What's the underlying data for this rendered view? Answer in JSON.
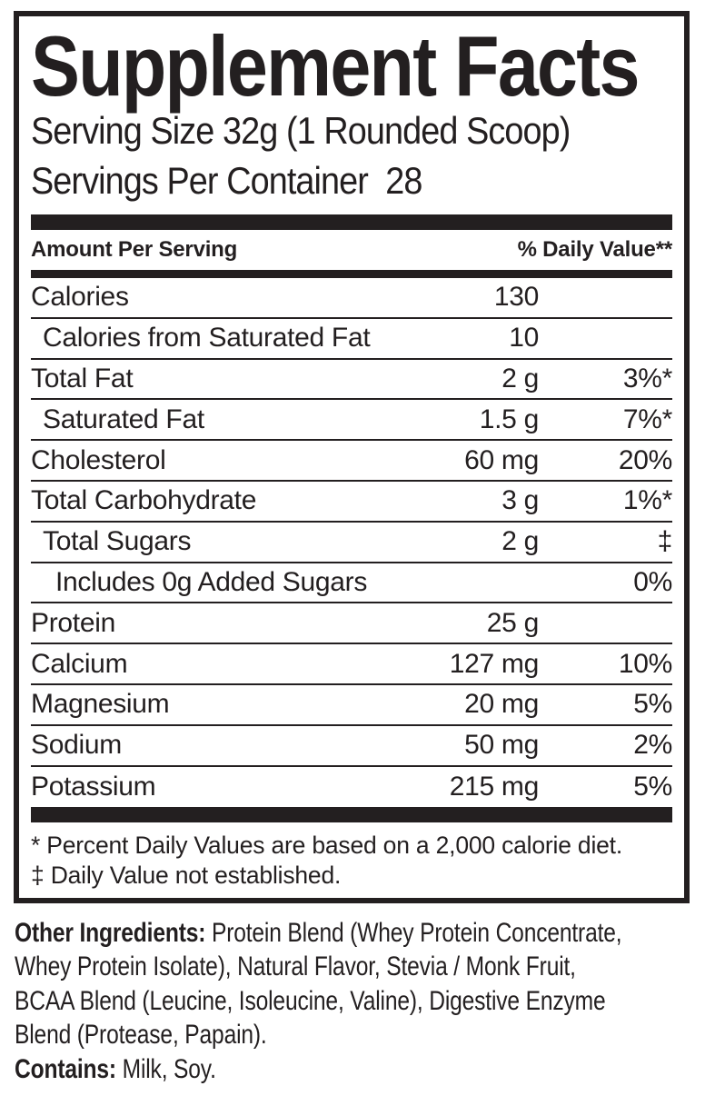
{
  "panel": {
    "title": "Supplement Facts",
    "serving_size": "Serving Size 32g (1 Rounded Scoop)",
    "servings_per_container": "Servings Per Container  28",
    "columns": {
      "amount": "Amount Per Serving",
      "daily_value": "% Daily Value**"
    },
    "rows": [
      {
        "name": "Calories",
        "amount": "130",
        "dv": ""
      },
      {
        "name": "Calories from Saturated Fat",
        "amount": "10",
        "dv": ""
      },
      {
        "name": "Total Fat",
        "amount": "2 g",
        "dv": "3%*"
      },
      {
        "name": "Saturated Fat",
        "amount": "1.5 g",
        "dv": "7%*"
      },
      {
        "name": "Cholesterol",
        "amount": "60 mg",
        "dv": "20%"
      },
      {
        "name": "Total Carbohydrate",
        "amount": "3 g",
        "dv": "1%*"
      },
      {
        "name": "Total Sugars",
        "amount": "2 g",
        "dv": "‡"
      },
      {
        "name": "Includes 0g Added Sugars",
        "amount": "",
        "dv": "0%"
      },
      {
        "name": "Protein",
        "amount": "25 g",
        "dv": ""
      },
      {
        "name": "Calcium",
        "amount": "127 mg",
        "dv": "10%"
      },
      {
        "name": "Magnesium",
        "amount": "20 mg",
        "dv": "5%"
      },
      {
        "name": "Sodium",
        "amount": "50 mg",
        "dv": "2%"
      },
      {
        "name": "Potassium",
        "amount": "215 mg",
        "dv": "5%"
      }
    ],
    "footnotes": [
      "* Percent Daily Values are based on a 2,000 calorie diet.",
      "‡ Daily Value not established."
    ]
  },
  "ingredients": {
    "other_label": "Other Ingredients:",
    "line1_rest": " Protein Blend (Whey Protein Concentrate,",
    "line2": "Whey Protein Isolate), Natural Flavor, Stevia / Monk Fruit,",
    "line3": "BCAA Blend (Leucine, Isoleucine, Valine), Digestive Enzyme",
    "line4": "Blend (Protease, Papain).",
    "contains_label": "Contains:",
    "contains_rest": " Milk, Soy.",
    "full_text": "Other Ingredients: Protein Blend (Whey Protein Concentrate, Whey Protein Isolate), Natural Flavor, Stevia / Monk Fruit, BCAA Blend (Leucine, Isoleucine, Valine), Digestive Enzyme Blend (Protease, Papain).",
    "contains_full_text": "Contains: Milk, Soy."
  },
  "colors": {
    "ink": "#231f20",
    "background": "#ffffff"
  }
}
